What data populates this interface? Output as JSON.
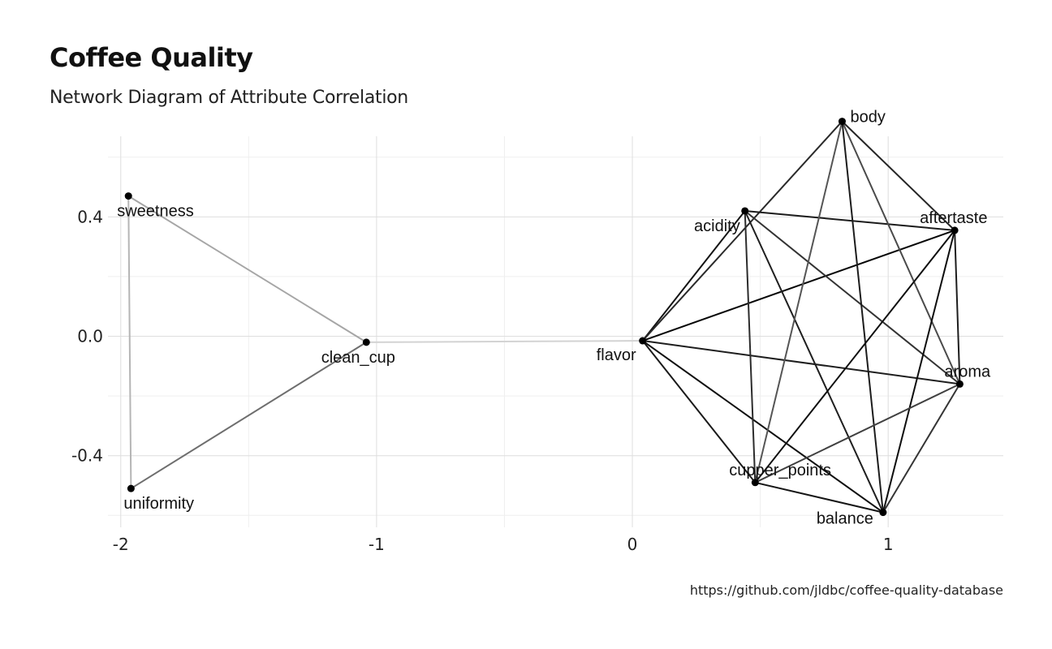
{
  "title": "Coffee Quality",
  "subtitle": "Network Diagram of Attribute Correlation",
  "caption": "https://github.com/jldbc/coffee-quality-database",
  "colors": {
    "background": "#ffffff",
    "grid_major": "#dedede",
    "grid_minor": "#efefef",
    "node": "#000000"
  },
  "chart_data": {
    "type": "network",
    "xlim": [
      -2.05,
      1.45
    ],
    "ylim": [
      -0.64,
      0.67
    ],
    "x_ticks": [
      -2,
      -1,
      0,
      1
    ],
    "y_ticks": [
      0.4,
      0.0,
      -0.4
    ],
    "x_tick_labels": [
      "-2",
      "-1",
      "0",
      "1"
    ],
    "y_tick_labels": [
      "0.4",
      "0.0",
      "-0.4"
    ],
    "grid": true,
    "nodes": [
      {
        "name": "sweetness",
        "x": -1.97,
        "y": 0.47
      },
      {
        "name": "uniformity",
        "x": -1.96,
        "y": -0.51
      },
      {
        "name": "clean_cup",
        "x": -1.04,
        "y": -0.02
      },
      {
        "name": "flavor",
        "x": 0.04,
        "y": -0.015
      },
      {
        "name": "acidity",
        "x": 0.44,
        "y": 0.42
      },
      {
        "name": "body",
        "x": 0.82,
        "y": 0.72
      },
      {
        "name": "aftertaste",
        "x": 1.26,
        "y": 0.355
      },
      {
        "name": "aroma",
        "x": 1.28,
        "y": -0.16
      },
      {
        "name": "cupper_points",
        "x": 0.48,
        "y": -0.49
      },
      {
        "name": "balance",
        "x": 0.98,
        "y": -0.59
      }
    ],
    "edges": [
      {
        "from": "sweetness",
        "to": "uniformity",
        "color": "#b5b5b5"
      },
      {
        "from": "sweetness",
        "to": "clean_cup",
        "color": "#a6a6a6"
      },
      {
        "from": "uniformity",
        "to": "clean_cup",
        "color": "#6e6e6e"
      },
      {
        "from": "clean_cup",
        "to": "flavor",
        "color": "#d3d3d3"
      },
      {
        "from": "flavor",
        "to": "acidity",
        "color": "#141414"
      },
      {
        "from": "flavor",
        "to": "body",
        "color": "#2a2a2a"
      },
      {
        "from": "flavor",
        "to": "aftertaste",
        "color": "#050505"
      },
      {
        "from": "flavor",
        "to": "aroma",
        "color": "#1e1e1e"
      },
      {
        "from": "flavor",
        "to": "cupper_points",
        "color": "#1a1a1a"
      },
      {
        "from": "flavor",
        "to": "balance",
        "color": "#101010"
      },
      {
        "from": "acidity",
        "to": "aftertaste",
        "color": "#1b1b1b"
      },
      {
        "from": "acidity",
        "to": "aroma",
        "color": "#333333"
      },
      {
        "from": "acidity",
        "to": "cupper_points",
        "color": "#2c2c2c"
      },
      {
        "from": "acidity",
        "to": "balance",
        "color": "#1f1f1f"
      },
      {
        "from": "body",
        "to": "aftertaste",
        "color": "#252525"
      },
      {
        "from": "body",
        "to": "aroma",
        "color": "#4a4a4a"
      },
      {
        "from": "body",
        "to": "cupper_points",
        "color": "#555555"
      },
      {
        "from": "body",
        "to": "balance",
        "color": "#1c1c1c"
      },
      {
        "from": "aftertaste",
        "to": "aroma",
        "color": "#1d1d1d"
      },
      {
        "from": "aftertaste",
        "to": "cupper_points",
        "color": "#101010"
      },
      {
        "from": "aftertaste",
        "to": "balance",
        "color": "#0d0d0d"
      },
      {
        "from": "aroma",
        "to": "cupper_points",
        "color": "#404040"
      },
      {
        "from": "aroma",
        "to": "balance",
        "color": "#353535"
      },
      {
        "from": "cupper_points",
        "to": "balance",
        "color": "#151515"
      }
    ]
  }
}
